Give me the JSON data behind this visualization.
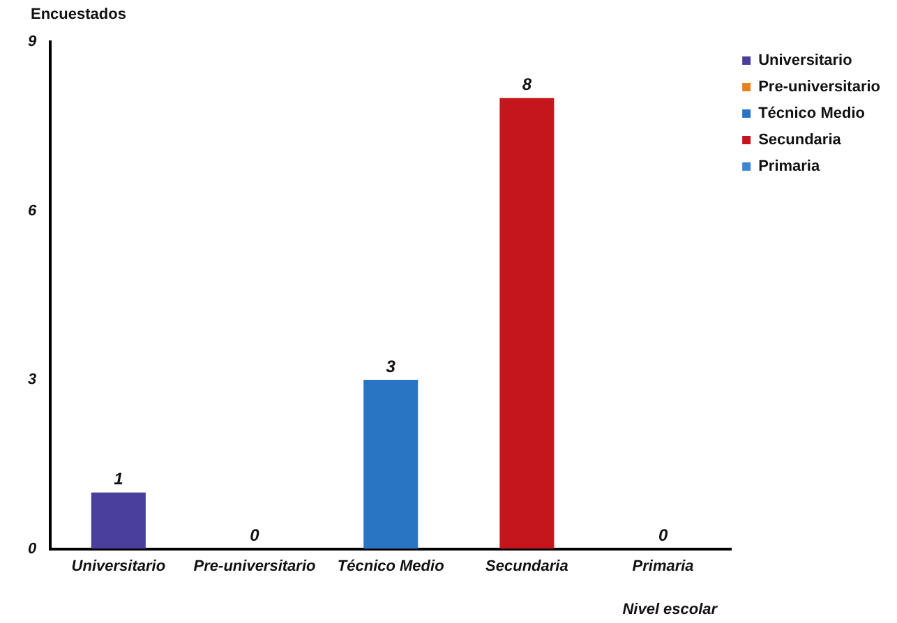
{
  "chart_data": {
    "type": "bar",
    "ylabel": "Encuestados",
    "xlabel": "Nivel escolar",
    "categories": [
      "Universitario",
      "Pre-universitario",
      "Técnico Medio",
      "Secundaria",
      "Primaria"
    ],
    "series": [
      {
        "name": "Universitario",
        "color": "#4b3f9e",
        "values": [
          1,
          null,
          null,
          null,
          null
        ]
      },
      {
        "name": "Pre-universitario",
        "color": "#e8821e",
        "values": [
          null,
          0,
          null,
          null,
          null
        ]
      },
      {
        "name": "Técnico Medio",
        "color": "#2a74c4",
        "values": [
          null,
          null,
          3,
          null,
          null
        ]
      },
      {
        "name": "Secundaria",
        "color": "#c4161c",
        "values": [
          null,
          null,
          null,
          8,
          null
        ]
      },
      {
        "name": "Primaria",
        "color": "#3f86d0",
        "values": [
          null,
          null,
          null,
          null,
          0
        ]
      }
    ],
    "ylim": [
      0,
      9
    ],
    "yticks": [
      0,
      3,
      6,
      9
    ],
    "grid": false,
    "legend": "top right",
    "data_labels": true
  }
}
